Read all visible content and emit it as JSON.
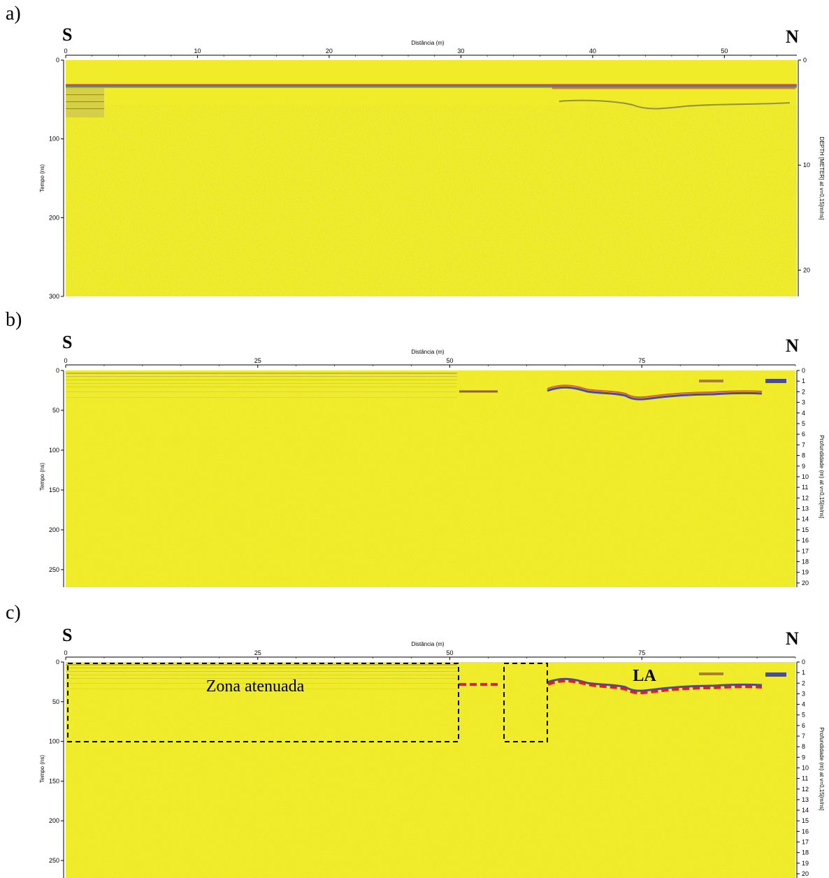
{
  "colors": {
    "background": "#f0ec2a",
    "reflector_blue": "#2b2fb8",
    "reflector_red": "#d43a3a",
    "interpretation": "#e01f1f",
    "box": "#000000"
  },
  "panels": [
    {
      "label": "a)",
      "left_dir": "S",
      "right_dir": "N",
      "x_title": "Distância (m)",
      "y_title": "Tempo (ns)",
      "y2_title": "DEPTH [METER] at v=0,15[m/ns]",
      "x_max": 55.5,
      "x_ticks": [
        "0",
        "10",
        "20",
        "30",
        "40",
        "50"
      ],
      "y_max": 300,
      "y_ticks": [
        "0",
        "100",
        "200",
        "300"
      ],
      "d_max": 22.5,
      "d_ticks": [
        "0",
        "10",
        "20"
      ]
    },
    {
      "label": "b)",
      "left_dir": "S",
      "right_dir": "N",
      "x_title": "Distância (m)",
      "y_title": "Tempo (ns)",
      "y2_title": "Profundidade (m) at v=0,15[m/ns]",
      "x_max": 95,
      "x_ticks": [
        "0",
        "25",
        "50",
        "75"
      ],
      "y_max": 272,
      "y_ticks": [
        "0",
        "50",
        "100",
        "150",
        "200",
        "250"
      ],
      "d_max": 20.4,
      "d_ticks": [
        "0",
        "1",
        "2",
        "3",
        "4",
        "5",
        "6",
        "7",
        "8",
        "9",
        "10",
        "11",
        "12",
        "13",
        "14",
        "15",
        "16",
        "17",
        "18",
        "19",
        "20"
      ]
    },
    {
      "label": "c)",
      "left_dir": "S",
      "right_dir": "N",
      "x_title": "Distância (m)",
      "y_title": "Tempo (ns)",
      "y2_title": "Profundidade (m) at v=0,15[m/ns]",
      "x_max": 95,
      "x_ticks": [
        "0",
        "25",
        "50",
        "75"
      ],
      "y_max": 272,
      "y_ticks": [
        "0",
        "50",
        "100",
        "150",
        "200",
        "250"
      ],
      "d_max": 20.4,
      "d_ticks": [
        "0",
        "1",
        "2",
        "3",
        "4",
        "5",
        "6",
        "7",
        "8",
        "9",
        "10",
        "11",
        "12",
        "13",
        "14",
        "15",
        "16",
        "17",
        "18",
        "19",
        "20"
      ],
      "annotations": {
        "zone_label": "Zona atenuada",
        "reflector_label": "LA"
      }
    }
  ]
}
